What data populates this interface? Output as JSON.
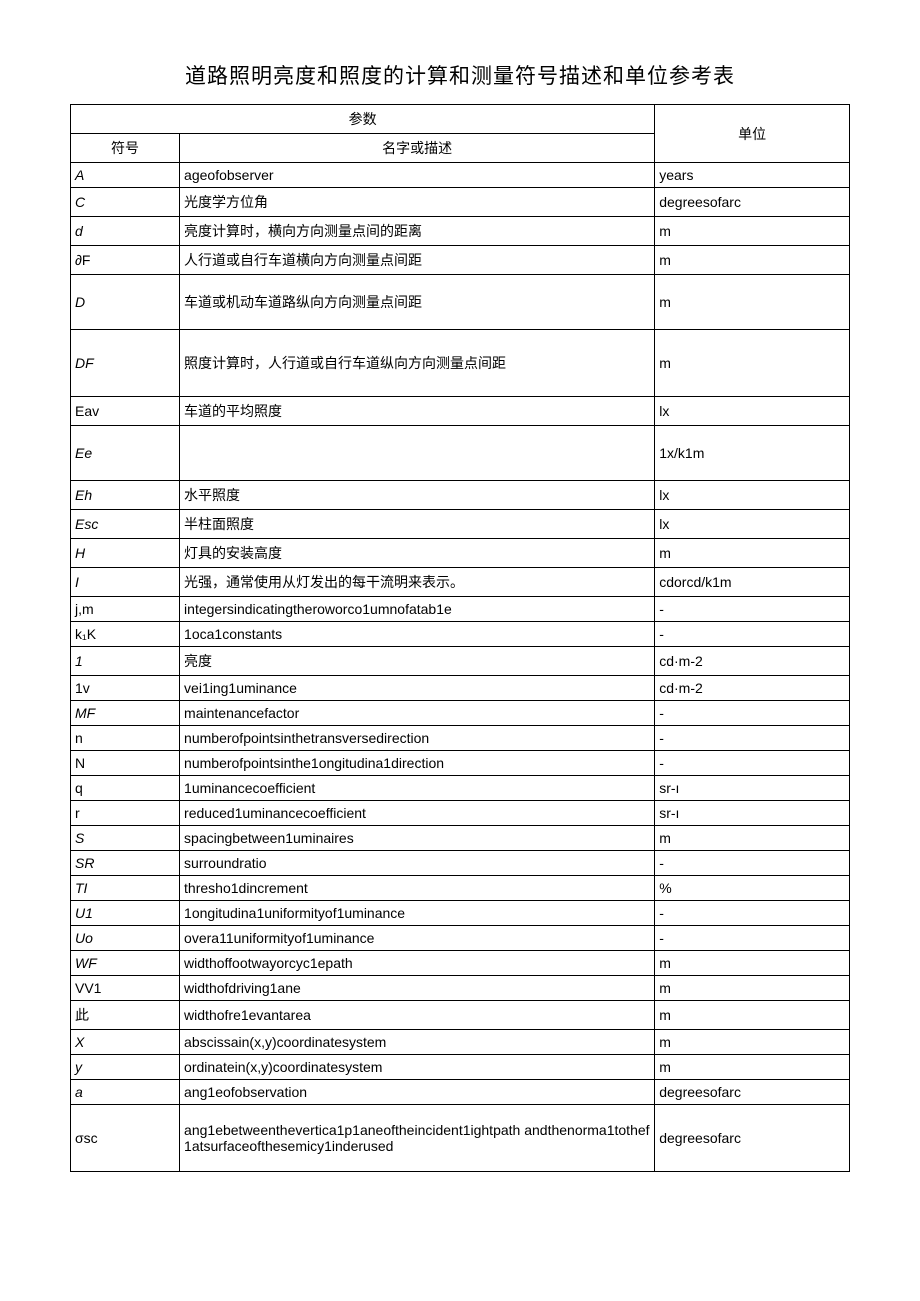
{
  "title": "道路照明亮度和照度的计算和测量符号描述和单位参考表",
  "header": {
    "param": "参数",
    "symbol": "符号",
    "desc": "名字或描述",
    "unit": "单位"
  },
  "rows": [
    {
      "sym": "A",
      "symClass": "italic",
      "desc": "ageofobserver",
      "descClass": "latin",
      "unit": "years",
      "unitClass": "latin"
    },
    {
      "sym": "C",
      "symClass": "italic",
      "desc": "光度学方位角",
      "descClass": "",
      "unit": "degreesofarc",
      "unitClass": "latin"
    },
    {
      "sym": "d",
      "symClass": "italic",
      "desc": "亮度计算时，横向方向测量点间的距离",
      "descClass": "",
      "unit": "m",
      "unitClass": "latin"
    },
    {
      "sym": "∂F",
      "symClass": "latin",
      "desc": "人行道或自行车道横向方向测量点间距",
      "descClass": "",
      "unit": "m",
      "unitClass": "latin"
    },
    {
      "sym": "D",
      "symClass": "italic",
      "desc": "车道或机动车道路纵向方向测量点间距",
      "descClass": "",
      "unit": "m",
      "unitClass": "latin",
      "tall": true
    },
    {
      "sym": "DF",
      "symClass": "italic",
      "desc": "照度计算时，人行道或自行车道纵向方向测量点间距",
      "descClass": "",
      "unit": "m",
      "unitClass": "latin",
      "xtall": true
    },
    {
      "sym": "Eav",
      "symClass": "latin",
      "desc": "车道的平均照度",
      "descClass": "",
      "unit": "lx",
      "unitClass": "latin"
    },
    {
      "sym": "Ee",
      "symClass": "italic",
      "desc": "",
      "descClass": "",
      "unit": "1x/k1m",
      "unitClass": "latin",
      "tall": true
    },
    {
      "sym": "Eh",
      "symClass": "italic",
      "desc": "水平照度",
      "descClass": "",
      "unit": "lx",
      "unitClass": "latin"
    },
    {
      "sym": "Esc",
      "symClass": "italic",
      "desc": "半柱面照度",
      "descClass": "",
      "unit": "lx",
      "unitClass": "latin"
    },
    {
      "sym": "H",
      "symClass": "italic",
      "desc": "灯具的安装高度",
      "descClass": "",
      "unit": "m",
      "unitClass": "latin"
    },
    {
      "sym": "I",
      "symClass": "italic",
      "desc": "光强，通常使用从灯发出的每干流明来表示。",
      "descClass": "",
      "unit": "cdorcd/k1m",
      "unitClass": "latin"
    },
    {
      "sym": "j,m",
      "symClass": "latin",
      "desc": "integersindicatingtheroworco1umnofatab1e",
      "descClass": "latin",
      "unit": "-",
      "unitClass": "latin"
    },
    {
      "sym": "k₁K",
      "symClass": "latin",
      "desc": "1oca1constants",
      "descClass": "latin",
      "unit": "-",
      "unitClass": "latin"
    },
    {
      "sym": "1",
      "symClass": "italic",
      "desc": "亮度",
      "descClass": "",
      "unit": "cd·m-2",
      "unitClass": "latin"
    },
    {
      "sym": "1v",
      "symClass": "latin",
      "desc": "vei1ing1uminance",
      "descClass": "latin",
      "unit": "cd·m-2",
      "unitClass": "latin"
    },
    {
      "sym": "MF",
      "symClass": "italic",
      "desc": "maintenancefactor",
      "descClass": "latin",
      "unit": "-",
      "unitClass": "latin"
    },
    {
      "sym": "n",
      "symClass": "latin",
      "desc": "numberofpointsinthetransversedirection",
      "descClass": "latin",
      "unit": "-",
      "unitClass": "latin"
    },
    {
      "sym": "N",
      "symClass": "latin",
      "desc": "numberofpointsinthe1ongitudina1direction",
      "descClass": "latin",
      "unit": "-",
      "unitClass": "latin"
    },
    {
      "sym": "q",
      "symClass": "latin",
      "desc": "1uminancecoefficient",
      "descClass": "latin",
      "unit": "sr-ı",
      "unitClass": "latin"
    },
    {
      "sym": "r",
      "symClass": "latin",
      "desc": "reduced1uminancecoefficient",
      "descClass": "latin",
      "unit": "sr-ı",
      "unitClass": "latin"
    },
    {
      "sym": "S",
      "symClass": "italic",
      "desc": "spacingbetween1uminaires",
      "descClass": "latin",
      "unit": "m",
      "unitClass": "latin"
    },
    {
      "sym": "SR",
      "symClass": "italic",
      "desc": "surroundratio",
      "descClass": "latin",
      "unit": "-",
      "unitClass": "latin"
    },
    {
      "sym": "TI",
      "symClass": "italic",
      "desc": "thresho1dincrement",
      "descClass": "latin",
      "unit": "%",
      "unitClass": "latin"
    },
    {
      "sym": "U1",
      "symClass": "italic",
      "desc": "1ongitudina1uniformityof1uminance",
      "descClass": "latin",
      "unit": "-",
      "unitClass": "latin"
    },
    {
      "sym": "Uo",
      "symClass": "italic",
      "desc": "overa11uniformityof1uminance",
      "descClass": "latin",
      "unit": "-",
      "unitClass": "latin"
    },
    {
      "sym": "WF",
      "symClass": "italic",
      "desc": "widthoffootwayorcyc1epath",
      "descClass": "latin",
      "unit": "m",
      "unitClass": "latin"
    },
    {
      "sym": "VV1",
      "symClass": "latin",
      "desc": "widthofdriving1ane",
      "descClass": "latin",
      "unit": "m",
      "unitClass": "latin"
    },
    {
      "sym": "此",
      "symClass": "",
      "desc": "widthofre1evantarea",
      "descClass": "latin",
      "unit": "m",
      "unitClass": "latin"
    },
    {
      "sym": "X",
      "symClass": "italic",
      "desc": "abscissain(x,y)coordinatesystem",
      "descClass": "latin",
      "unit": "m",
      "unitClass": "latin"
    },
    {
      "sym": "y",
      "symClass": "italic",
      "desc": "ordinatein(x,y)coordinatesystem",
      "descClass": "latin",
      "unit": "m",
      "unitClass": "latin"
    },
    {
      "sym": "a",
      "symClass": "italic",
      "desc": "ang1eofobservation",
      "descClass": "latin",
      "unit": "degreesofarc",
      "unitClass": "latin"
    },
    {
      "sym": "σsc",
      "symClass": "latin",
      "desc": "ang1ebetweenthevertica1p1aneoftheincident1ightpath andthenorma1tothef1atsurfaceofthesemicy1inderused",
      "descClass": "latin",
      "unit": "degreesofarc",
      "unitClass": "latin",
      "xtall": true,
      "last": true
    }
  ]
}
